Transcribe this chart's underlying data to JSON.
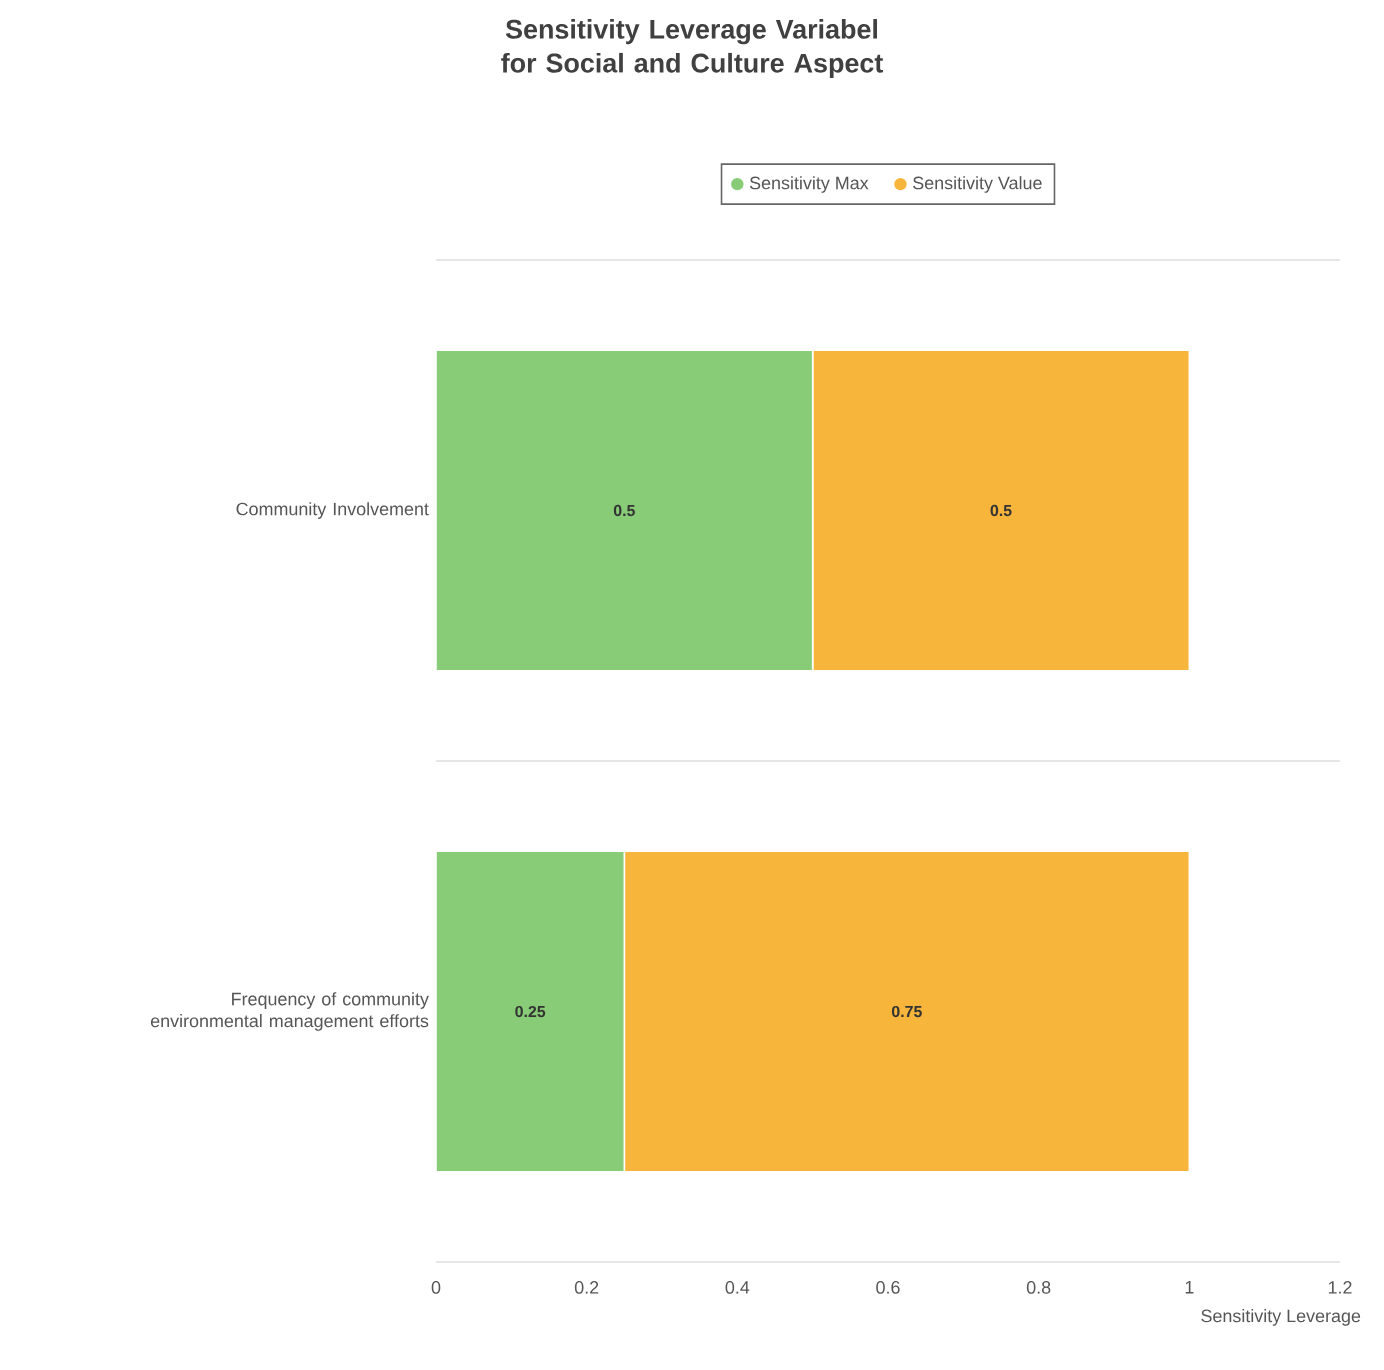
{
  "chart_data": {
    "type": "bar",
    "orientation": "horizontal",
    "stacked": true,
    "title": "Sensitivity Leverage Variabel for Social and Culture Aspect",
    "xlabel": "Sensitivity Leverage",
    "categories": [
      "Community Involvement",
      "Frequency of community environmental management efforts"
    ],
    "series": [
      {
        "name": "Sensitivity Max",
        "color": "#88cc77",
        "values": [
          0.5,
          0.25
        ]
      },
      {
        "name": "Sensitivity Value",
        "color": "#f7b53c",
        "values": [
          0.5,
          0.75
        ]
      }
    ],
    "xlim": [
      0,
      1.2
    ],
    "xticks": [
      0,
      0.2,
      0.4,
      0.6,
      0.8,
      1,
      1.2
    ],
    "data_labels": true,
    "legend": "top",
    "grid": "y"
  }
}
